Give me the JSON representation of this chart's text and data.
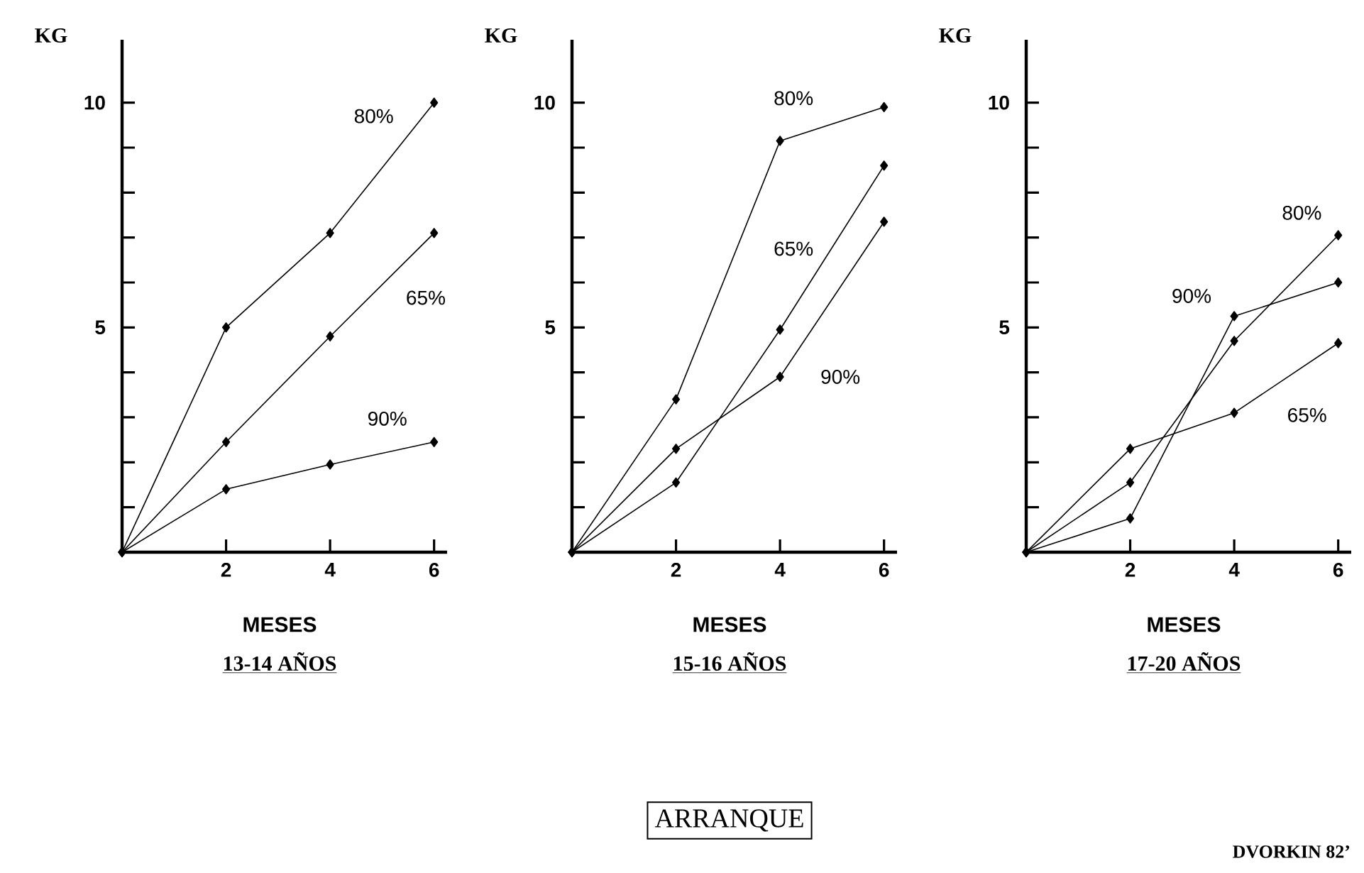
{
  "chart_data": [
    {
      "type": "line",
      "title": "13-14 AÑOS",
      "xlabel": "MESES",
      "ylabel": "KG",
      "xlim": [
        0,
        6.25
      ],
      "ylim": [
        0,
        11.4
      ],
      "xticks": [
        2,
        4,
        6
      ],
      "yticks": [
        {
          "value": 1,
          "label": null
        },
        {
          "value": 2,
          "label": null
        },
        {
          "value": 3,
          "label": null
        },
        {
          "value": 4,
          "label": null
        },
        5,
        {
          "value": 6,
          "label": null
        },
        {
          "value": 7,
          "label": null
        },
        {
          "value": 8,
          "label": null
        },
        {
          "value": 9,
          "label": null
        },
        10
      ],
      "marker": "diamond",
      "line_style": "solid",
      "series": [
        {
          "name": "80%",
          "color": "#000000",
          "x": [
            0,
            2,
            4,
            6
          ],
          "values": [
            0,
            5.0,
            7.1,
            10.0
          ]
        },
        {
          "name": "65%",
          "color": "#000000",
          "x": [
            0,
            2,
            4,
            6
          ],
          "values": [
            0,
            2.45,
            4.8,
            7.1
          ]
        },
        {
          "name": "90%",
          "color": "#000000",
          "x": [
            0,
            2,
            4,
            6
          ],
          "values": [
            0,
            1.4,
            1.95,
            2.45
          ]
        }
      ]
    },
    {
      "type": "line",
      "title": "15-16  AÑOS",
      "xlabel": "MESES",
      "ylabel": "KG",
      "xlim": [
        0,
        6.25
      ],
      "ylim": [
        0,
        11.4
      ],
      "xticks": [
        2,
        4,
        6
      ],
      "yticks": [
        {
          "value": 1,
          "label": null
        },
        {
          "value": 2,
          "label": null
        },
        {
          "value": 3,
          "label": null
        },
        {
          "value": 4,
          "label": null
        },
        5,
        {
          "value": 6,
          "label": null
        },
        {
          "value": 7,
          "label": null
        },
        {
          "value": 8,
          "label": null
        },
        {
          "value": 9,
          "label": null
        },
        10
      ],
      "marker": "diamond",
      "line_style": "solid",
      "series": [
        {
          "name": "80%",
          "color": "#000000",
          "x": [
            0,
            2,
            4,
            6
          ],
          "values": [
            0,
            3.4,
            9.15,
            9.9
          ]
        },
        {
          "name": "65%",
          "color": "#000000",
          "x": [
            0,
            2,
            4,
            6
          ],
          "values": [
            0,
            1.55,
            4.95,
            8.6
          ]
        },
        {
          "name": "90%",
          "color": "#000000",
          "x": [
            0,
            2,
            4,
            6
          ],
          "values": [
            0,
            2.3,
            3.9,
            7.35
          ]
        }
      ],
      "annotations": [
        "ARRANQUE"
      ]
    },
    {
      "type": "line",
      "title": "17-20  AÑOS",
      "xlabel": "MESES",
      "ylabel": "KG",
      "xlim": [
        0,
        6.25
      ],
      "ylim": [
        0,
        11.4
      ],
      "xticks": [
        2,
        4,
        6
      ],
      "yticks": [
        {
          "value": 1,
          "label": null
        },
        {
          "value": 2,
          "label": null
        },
        {
          "value": 3,
          "label": null
        },
        {
          "value": 4,
          "label": null
        },
        5,
        {
          "value": 6,
          "label": null
        },
        {
          "value": 7,
          "label": null
        },
        {
          "value": 8,
          "label": null
        },
        {
          "value": 9,
          "label": null
        },
        10
      ],
      "marker": "diamond",
      "line_style": "solid",
      "series": [
        {
          "name": "80%",
          "color": "#000000",
          "x": [
            0,
            2,
            4,
            6
          ],
          "values": [
            0,
            1.55,
            4.7,
            7.05
          ]
        },
        {
          "name": "65%",
          "color": "#000000",
          "x": [
            0,
            2,
            4,
            6
          ],
          "values": [
            0,
            2.3,
            3.1,
            4.65
          ]
        },
        {
          "name": "90%",
          "color": "#000000",
          "x": [
            0,
            2,
            4,
            6
          ],
          "values": [
            0,
            0.75,
            5.25,
            6.0
          ]
        }
      ],
      "annotations": [
        "DVORKIN 82’"
      ]
    }
  ]
}
